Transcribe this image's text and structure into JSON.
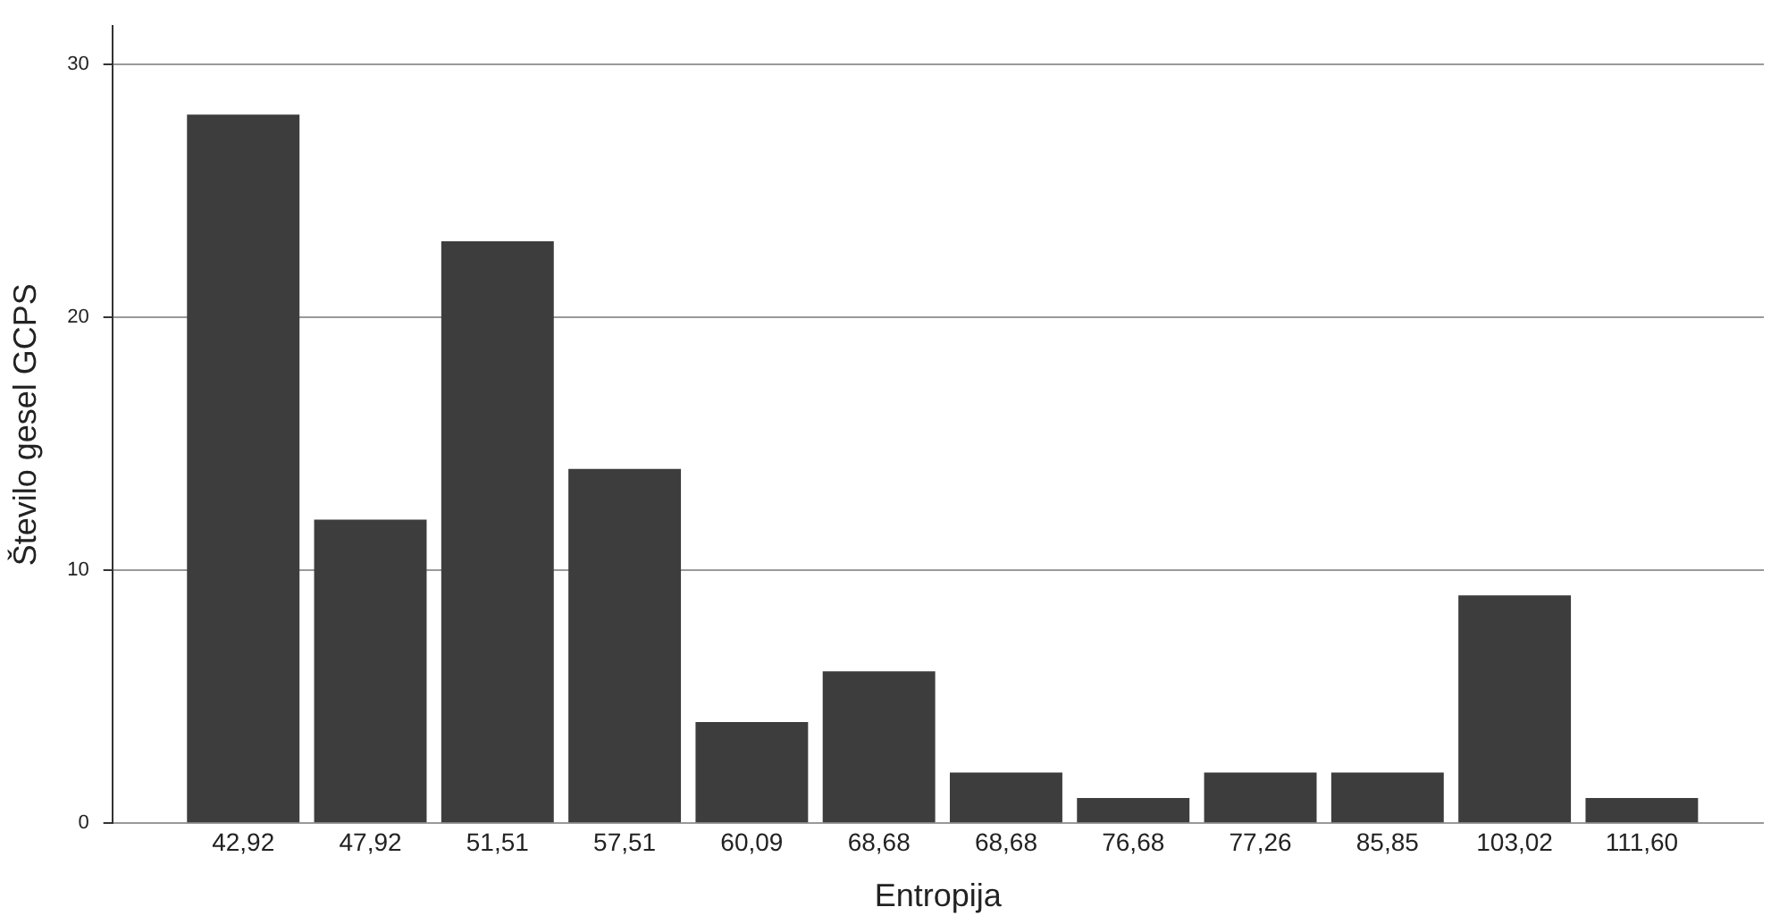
{
  "chart_data": {
    "type": "bar",
    "xlabel": "Entropija",
    "ylabel": "Število gesel GCPS",
    "categories": [
      "42,92",
      "47,92",
      "51,51",
      "57,51",
      "60,09",
      "68,68",
      "68,68",
      "76,68",
      "77,26",
      "85,85",
      "103,02",
      "111,60"
    ],
    "values": [
      28,
      12,
      23,
      14,
      4,
      6,
      2,
      1,
      2,
      2,
      9,
      1
    ],
    "color": "#3d3d3d",
    "ylim": [
      0,
      31.5
    ],
    "yticks": [
      0,
      10,
      20,
      30
    ],
    "grid": "y",
    "legend": false
  }
}
